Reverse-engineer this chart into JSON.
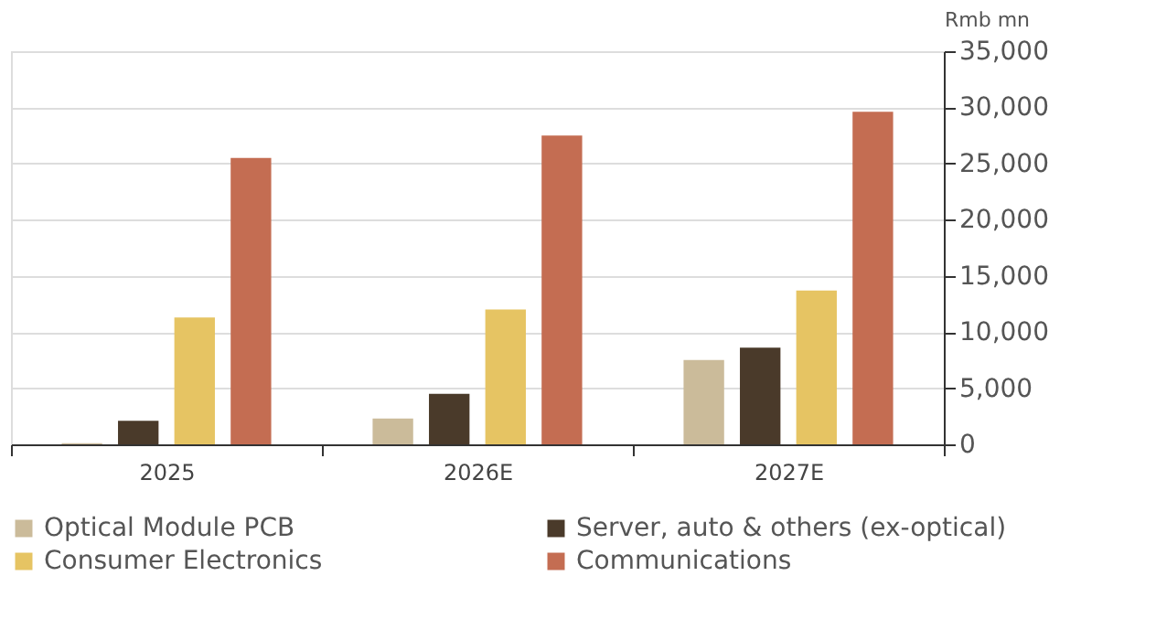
{
  "chart_data": {
    "type": "bar",
    "ylabel": "Rmb mn",
    "categories": [
      "2025",
      "2026E",
      "2027E"
    ],
    "series": [
      {
        "name": "Optical Module PCB",
        "color": "#cbbb9a",
        "values": [
          100,
          2300,
          7500
        ]
      },
      {
        "name": "Server, auto & others (ex-optical)",
        "color": "#4a3a2a",
        "values": [
          2100,
          4500,
          8600
        ]
      },
      {
        "name": "Consumer Electronics",
        "color": "#e6c463",
        "values": [
          11300,
          12000,
          13700
        ]
      },
      {
        "name": "Communications",
        "color": "#c46d52",
        "values": [
          25500,
          27500,
          29600
        ]
      }
    ],
    "ylim": [
      0,
      35000
    ],
    "yticks": [
      0,
      {
        "value": 5000,
        "label": "5,000"
      },
      {
        "value": 10000,
        "label": "10,000"
      },
      {
        "value": 15000,
        "label": "15,000"
      },
      {
        "value": 20000,
        "label": "20,000"
      },
      {
        "value": 25000,
        "label": "25,000"
      },
      {
        "value": 30000,
        "label": "30,000"
      },
      {
        "value": 35000,
        "label": "35,000"
      }
    ],
    "grid": "y",
    "legend": "bottom"
  }
}
